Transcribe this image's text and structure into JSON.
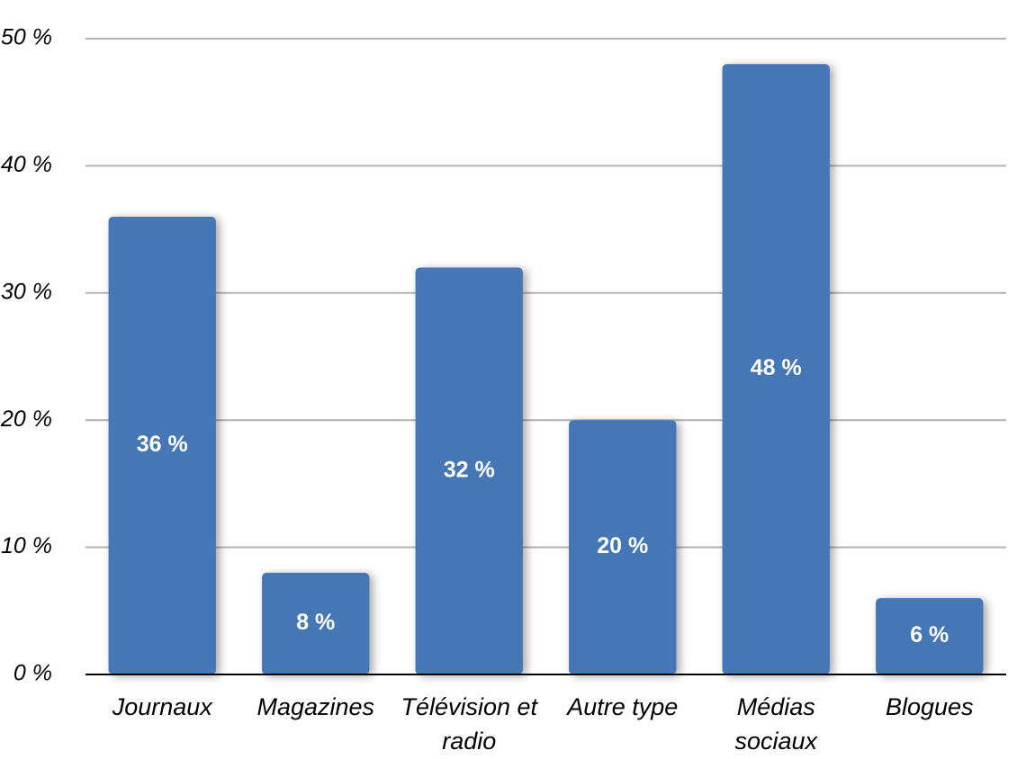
{
  "chart_data": {
    "type": "bar",
    "categories": [
      "Journaux",
      "Magazines",
      "Télévision et radio",
      "Autre type",
      "Médias sociaux",
      "Blogues"
    ],
    "values": [
      36,
      8,
      32,
      20,
      48,
      6
    ],
    "value_labels": [
      "36 %",
      "8 %",
      "32 %",
      "20 %",
      "48 %",
      "6 %"
    ],
    "color": "#4576b5",
    "ylim": [
      0,
      50
    ],
    "yticks": [
      {
        "value": 0,
        "label": "0 %"
      },
      {
        "value": 10,
        "label": "10 %"
      },
      {
        "value": 20,
        "label": "20 %"
      },
      {
        "value": 30,
        "label": "30 %"
      },
      {
        "value": 40,
        "label": "40 %"
      },
      {
        "value": 50,
        "label": "50 %"
      }
    ],
    "grid": true
  }
}
